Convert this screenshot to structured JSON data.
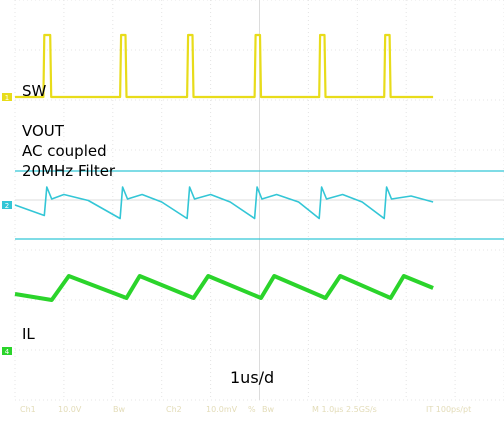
{
  "chart_data": {
    "type": "line",
    "title": "",
    "xlabel": "1us/d",
    "ylabel": "",
    "series": [
      {
        "name": "SW",
        "channel": "1",
        "color": "#e8dc1a",
        "trace_label": "SW",
        "values": [
          [
            0.0,
            0
          ],
          [
            0.58,
            0
          ],
          [
            0.6,
            1
          ],
          [
            0.72,
            1
          ],
          [
            0.74,
            0
          ],
          [
            2.15,
            0
          ],
          [
            2.17,
            1
          ],
          [
            2.26,
            1
          ],
          [
            2.28,
            0
          ],
          [
            3.52,
            0
          ],
          [
            3.54,
            1
          ],
          [
            3.63,
            1
          ],
          [
            3.65,
            0
          ],
          [
            4.9,
            0
          ],
          [
            4.92,
            1
          ],
          [
            5.01,
            1
          ],
          [
            5.03,
            0
          ],
          [
            6.22,
            0
          ],
          [
            6.24,
            1
          ],
          [
            6.33,
            1
          ],
          [
            6.35,
            0
          ],
          [
            7.55,
            0
          ],
          [
            7.57,
            1
          ],
          [
            7.66,
            1
          ],
          [
            7.68,
            0
          ],
          [
            8.55,
            0
          ]
        ]
      },
      {
        "name": "VOUT",
        "channel": "2",
        "color": "#33c6d6",
        "trace_label_lines": [
          "VOUT",
          "AC coupled",
          "20MHz Filter"
        ],
        "values": [
          [
            0.0,
            0.0
          ],
          [
            0.6,
            -0.35
          ],
          [
            0.65,
            0.6
          ],
          [
            0.75,
            0.2
          ],
          [
            1.0,
            0.35
          ],
          [
            1.5,
            0.15
          ],
          [
            2.15,
            -0.45
          ],
          [
            2.2,
            0.6
          ],
          [
            2.3,
            0.2
          ],
          [
            2.6,
            0.35
          ],
          [
            3.0,
            0.1
          ],
          [
            3.52,
            -0.45
          ],
          [
            3.57,
            0.6
          ],
          [
            3.67,
            0.2
          ],
          [
            4.0,
            0.35
          ],
          [
            4.4,
            0.1
          ],
          [
            4.9,
            -0.45
          ],
          [
            4.95,
            0.6
          ],
          [
            5.05,
            0.2
          ],
          [
            5.35,
            0.35
          ],
          [
            5.8,
            0.1
          ],
          [
            6.22,
            -0.45
          ],
          [
            6.27,
            0.6
          ],
          [
            6.37,
            0.2
          ],
          [
            6.7,
            0.35
          ],
          [
            7.1,
            0.1
          ],
          [
            7.55,
            -0.45
          ],
          [
            7.6,
            0.6
          ],
          [
            7.7,
            0.2
          ],
          [
            8.1,
            0.3
          ],
          [
            8.55,
            0.1
          ]
        ]
      },
      {
        "name": "IL",
        "channel": "4",
        "color": "#2bd42b",
        "trace_label": "IL",
        "values": [
          [
            0.0,
            -0.1
          ],
          [
            0.75,
            -0.25
          ],
          [
            1.1,
            0.35
          ],
          [
            2.28,
            -0.2
          ],
          [
            2.55,
            0.35
          ],
          [
            3.65,
            -0.2
          ],
          [
            3.95,
            0.35
          ],
          [
            5.03,
            -0.2
          ],
          [
            5.3,
            0.35
          ],
          [
            6.35,
            -0.2
          ],
          [
            6.65,
            0.35
          ],
          [
            7.68,
            -0.2
          ],
          [
            7.95,
            0.35
          ],
          [
            8.55,
            0.05
          ]
        ]
      }
    ],
    "cursor_band": {
      "channel": "2",
      "upper": 0.85,
      "lower": -0.85
    },
    "xlim": [
      0,
      10
    ],
    "grid": true,
    "channel_settings": [
      "Ch1",
      "10.0V",
      "Bw",
      "Ch2",
      "10.0mV",
      "%",
      "Bw",
      "M 1.0µs 2.5GS/s",
      "IT 100ps/pt"
    ]
  }
}
